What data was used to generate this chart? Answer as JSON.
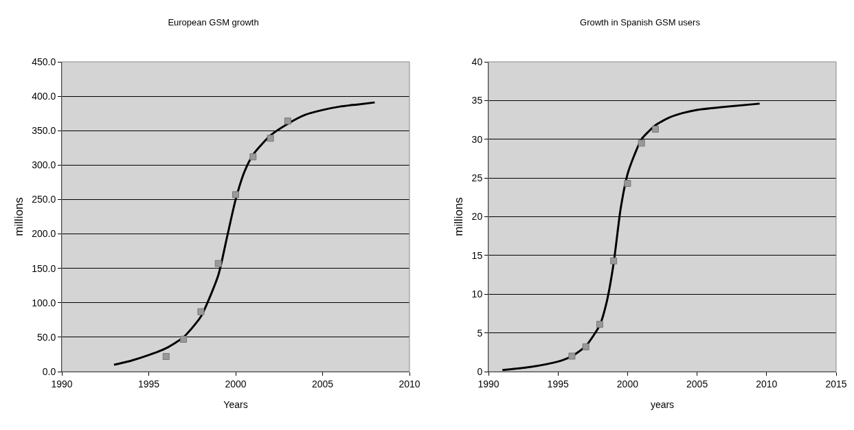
{
  "chart_data": [
    {
      "type": "scatter",
      "title": "European GSM growth",
      "xlabel": "Years",
      "ylabel": "millions",
      "xlim": [
        1990,
        2010
      ],
      "xticks": [
        1990,
        1995,
        2000,
        2005,
        2010
      ],
      "ylim": [
        0,
        450
      ],
      "yticks": [
        {
          "value": 0,
          "label": "0.0"
        },
        {
          "value": 50,
          "label": "50.0"
        },
        {
          "value": 100,
          "label": "100.0"
        },
        {
          "value": 150,
          "label": "150.0"
        },
        {
          "value": 200,
          "label": "200.0"
        },
        {
          "value": 250,
          "label": "250.0"
        },
        {
          "value": 300,
          "label": "300.0"
        },
        {
          "value": 350,
          "label": "350.0"
        },
        {
          "value": 400,
          "label": "400.0"
        },
        {
          "value": 450,
          "label": "450.0"
        }
      ],
      "grid": "y",
      "series": [
        {
          "type": "line",
          "color": "#000000",
          "marker": "none",
          "x": [
            1993,
            1994,
            1995,
            1996,
            1997,
            1998,
            1999,
            1999.5,
            2000,
            2000.5,
            2001,
            2002,
            2003,
            2004,
            2005,
            2006,
            2007,
            2008
          ],
          "values": [
            10,
            16,
            24,
            34,
            50,
            80,
            140,
            195,
            250,
            290,
            315,
            343,
            360,
            373,
            380,
            385,
            388,
            391
          ]
        },
        {
          "color": "#999999",
          "marker": "square",
          "x": [
            1996,
            1997,
            1998,
            1999,
            2000,
            2001,
            2002,
            2003
          ],
          "values": [
            22,
            47,
            87,
            157,
            257,
            312,
            339,
            364
          ]
        }
      ]
    },
    {
      "type": "scatter",
      "title": "Growth in Spanish GSM users",
      "xlabel": "years",
      "ylabel": "millions",
      "xlim": [
        1990,
        2015
      ],
      "xticks": [
        1990,
        1995,
        2000,
        2005,
        2010,
        2015
      ],
      "ylim": [
        0,
        40
      ],
      "yticks": [
        0,
        5,
        10,
        15,
        20,
        25,
        30,
        35,
        40
      ],
      "grid": "y",
      "series": [
        {
          "type": "line",
          "color": "#000000",
          "marker": "none",
          "x": [
            1991,
            1993,
            1995,
            1996,
            1997,
            1998,
            1998.5,
            1999,
            1999.5,
            2000,
            2000.5,
            2001,
            2002,
            2003,
            2004,
            2005,
            2007,
            2009.5
          ],
          "values": [
            0.2,
            0.6,
            1.3,
            2,
            3.3,
            6,
            9,
            14,
            21,
            25.5,
            28,
            30,
            31.8,
            32.8,
            33.4,
            33.8,
            34.2,
            34.6
          ]
        },
        {
          "color": "#999999",
          "marker": "square",
          "x": [
            1996,
            1997,
            1998,
            1999,
            2000,
            2001,
            2002
          ],
          "values": [
            2,
            3.2,
            6.1,
            14.3,
            24.3,
            29.5,
            31.3
          ]
        }
      ]
    }
  ]
}
